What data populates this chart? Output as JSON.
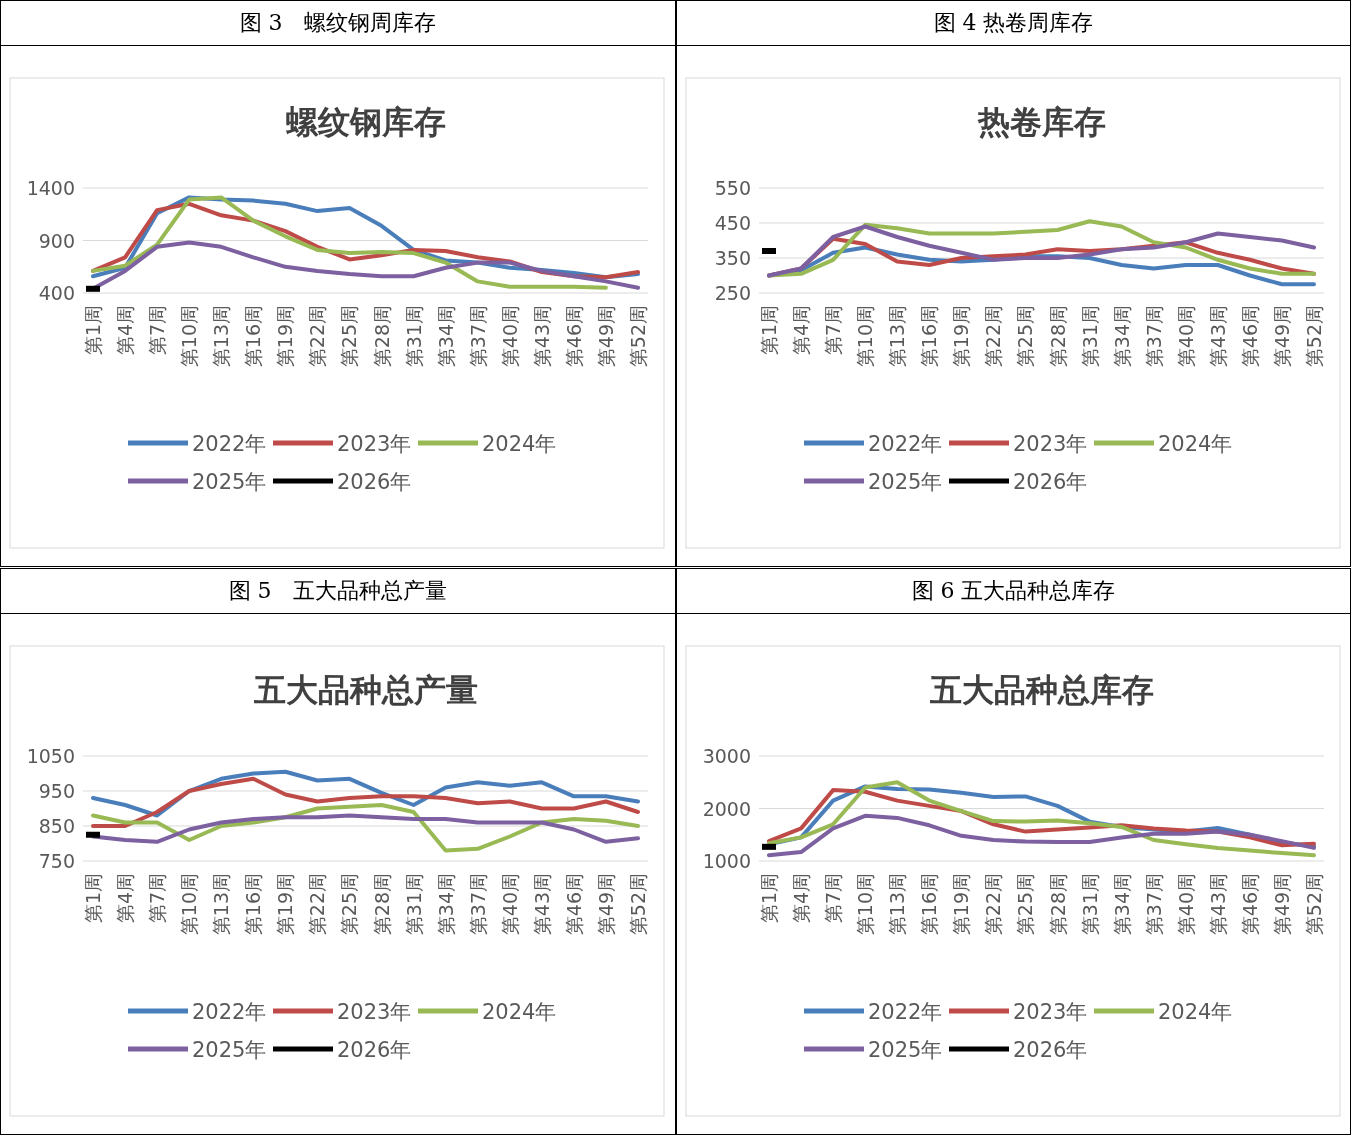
{
  "chart_data": [
    {
      "type": "line",
      "title": "图 3　螺纹钢周库存",
      "subtitle": "螺纹钢库存",
      "categories": [
        "第1周",
        "第4周",
        "第7周",
        "第10周",
        "第13周",
        "第16周",
        "第19周",
        "第22周",
        "第25周",
        "第28周",
        "第31周",
        "第34周",
        "第37周",
        "第40周",
        "第43周",
        "第46周",
        "第49周",
        "第52周"
      ],
      "ylim": [
        400,
        1400
      ],
      "yticks": [
        400,
        900,
        1400
      ],
      "grid": "y",
      "legend": "bottom",
      "series": [
        {
          "name": "2022年",
          "color": "#4a7ebb",
          "values": [
            560,
            640,
            1160,
            1310,
            1290,
            1280,
            1250,
            1180,
            1210,
            1040,
            810,
            710,
            690,
            640,
            620,
            590,
            550,
            580
          ]
        },
        {
          "name": "2023年",
          "color": "#be4b48",
          "values": [
            610,
            740,
            1190,
            1250,
            1140,
            1090,
            990,
            840,
            720,
            760,
            810,
            800,
            740,
            700,
            600,
            560,
            550,
            600
          ]
        },
        {
          "name": "2024年",
          "color": "#98b954",
          "values": [
            610,
            660,
            860,
            1290,
            1310,
            1090,
            940,
            810,
            780,
            790,
            780,
            690,
            510,
            460,
            460,
            460,
            450,
            null
          ]
        },
        {
          "name": "2025年",
          "color": "#7d60a0",
          "values": [
            440,
            610,
            840,
            880,
            840,
            740,
            650,
            610,
            580,
            560,
            560,
            640,
            690,
            690,
            610,
            560,
            510,
            450
          ]
        },
        {
          "name": "2026年",
          "color": "#000000",
          "marker": "square",
          "values": [
            440,
            null,
            null,
            null,
            null,
            null,
            null,
            null,
            null,
            null,
            null,
            null,
            null,
            null,
            null,
            null,
            null,
            null
          ]
        }
      ]
    },
    {
      "type": "line",
      "title": "图 4 热卷周库存",
      "subtitle": "热卷库存",
      "categories": [
        "第1周",
        "第4周",
        "第7周",
        "第10周",
        "第13周",
        "第16周",
        "第19周",
        "第22周",
        "第25周",
        "第28周",
        "第31周",
        "第34周",
        "第37周",
        "第40周",
        "第43周",
        "第46周",
        "第49周",
        "第52周"
      ],
      "ylim": [
        250,
        550
      ],
      "yticks": [
        250,
        350,
        450,
        550
      ],
      "grid": "y",
      "legend": "bottom",
      "series": [
        {
          "name": "2022年",
          "color": "#4a7ebb",
          "values": [
            300,
            315,
            365,
            380,
            360,
            345,
            340,
            345,
            355,
            355,
            350,
            330,
            320,
            330,
            330,
            300,
            275,
            275
          ]
        },
        {
          "name": "2023年",
          "color": "#be4b48",
          "values": [
            300,
            320,
            405,
            390,
            340,
            330,
            350,
            355,
            360,
            375,
            370,
            375,
            385,
            395,
            365,
            345,
            320,
            305
          ]
        },
        {
          "name": "2024年",
          "color": "#98b954",
          "values": [
            300,
            305,
            345,
            445,
            435,
            420,
            420,
            420,
            425,
            430,
            455,
            440,
            395,
            380,
            345,
            320,
            305,
            305
          ]
        },
        {
          "name": "2025年",
          "color": "#7d60a0",
          "values": [
            300,
            320,
            410,
            440,
            410,
            385,
            365,
            345,
            350,
            350,
            360,
            375,
            380,
            395,
            420,
            410,
            400,
            380
          ]
        },
        {
          "name": "2026年",
          "color": "#000000",
          "marker": "square",
          "values": [
            370,
            null,
            null,
            null,
            null,
            null,
            null,
            null,
            null,
            null,
            null,
            null,
            null,
            null,
            null,
            null,
            null,
            null
          ]
        }
      ]
    },
    {
      "type": "line",
      "title": "图 5　五大品种总产量",
      "subtitle": "五大品种总产量",
      "categories": [
        "第1周",
        "第4周",
        "第7周",
        "第10周",
        "第13周",
        "第16周",
        "第19周",
        "第22周",
        "第25周",
        "第28周",
        "第31周",
        "第34周",
        "第37周",
        "第40周",
        "第43周",
        "第46周",
        "第49周",
        "第52周"
      ],
      "ylim": [
        750,
        1050
      ],
      "yticks": [
        750,
        850,
        950,
        1050
      ],
      "grid": "y",
      "legend": "bottom",
      "series": [
        {
          "name": "2022年",
          "color": "#4a7ebb",
          "values": [
            930,
            910,
            880,
            950,
            985,
            1000,
            1005,
            980,
            985,
            945,
            910,
            960,
            975,
            965,
            975,
            935,
            935,
            920
          ]
        },
        {
          "name": "2023年",
          "color": "#be4b48",
          "values": [
            850,
            850,
            890,
            950,
            970,
            985,
            940,
            920,
            930,
            935,
            935,
            930,
            915,
            920,
            900,
            900,
            920,
            890
          ]
        },
        {
          "name": "2024年",
          "color": "#98b954",
          "values": [
            880,
            860,
            860,
            810,
            850,
            860,
            875,
            900,
            905,
            910,
            890,
            780,
            785,
            820,
            860,
            870,
            865,
            850
          ]
        },
        {
          "name": "2025年",
          "color": "#7d60a0",
          "values": [
            820,
            810,
            805,
            840,
            860,
            870,
            875,
            875,
            880,
            875,
            870,
            870,
            860,
            860,
            860,
            840,
            805,
            815
          ]
        },
        {
          "name": "2026年",
          "color": "#000000",
          "marker": "square",
          "values": [
            825,
            null,
            null,
            null,
            null,
            null,
            null,
            null,
            null,
            null,
            null,
            null,
            null,
            null,
            null,
            null,
            null,
            null
          ]
        }
      ]
    },
    {
      "type": "line",
      "title": "图 6 五大品种总库存",
      "subtitle": "五大品种总库存",
      "categories": [
        "第1周",
        "第4周",
        "第7周",
        "第10周",
        "第13周",
        "第16周",
        "第19周",
        "第22周",
        "第25周",
        "第28周",
        "第31周",
        "第34周",
        "第37周",
        "第40周",
        "第43周",
        "第46周",
        "第49周",
        "第52周"
      ],
      "ylim": [
        1000,
        3000
      ],
      "yticks": [
        1000,
        2000,
        3000
      ],
      "grid": "y",
      "legend": "bottom",
      "series": [
        {
          "name": "2022年",
          "color": "#4a7ebb",
          "values": [
            1320,
            1450,
            2150,
            2420,
            2370,
            2360,
            2300,
            2220,
            2230,
            2050,
            1750,
            1650,
            1600,
            1560,
            1630,
            1500,
            1350,
            1280
          ]
        },
        {
          "name": "2023年",
          "color": "#be4b48",
          "values": [
            1380,
            1620,
            2350,
            2320,
            2150,
            2050,
            1950,
            1700,
            1560,
            1600,
            1640,
            1680,
            1620,
            1580,
            1560,
            1450,
            1300,
            1330
          ]
        },
        {
          "name": "2024年",
          "color": "#98b954",
          "values": [
            1340,
            1450,
            1700,
            2400,
            2500,
            2150,
            1950,
            1760,
            1750,
            1770,
            1720,
            1650,
            1400,
            1320,
            1250,
            1200,
            1150,
            1110
          ]
        },
        {
          "name": "2025年",
          "color": "#7d60a0",
          "values": [
            1110,
            1170,
            1620,
            1860,
            1820,
            1680,
            1480,
            1400,
            1370,
            1360,
            1360,
            1450,
            1520,
            1520,
            1560,
            1500,
            1380,
            1250
          ]
        },
        {
          "name": "2026年",
          "color": "#000000",
          "marker": "square",
          "values": [
            1270,
            null,
            null,
            null,
            null,
            null,
            null,
            null,
            null,
            null,
            null,
            null,
            null,
            null,
            null,
            null,
            null,
            null
          ]
        }
      ]
    }
  ]
}
